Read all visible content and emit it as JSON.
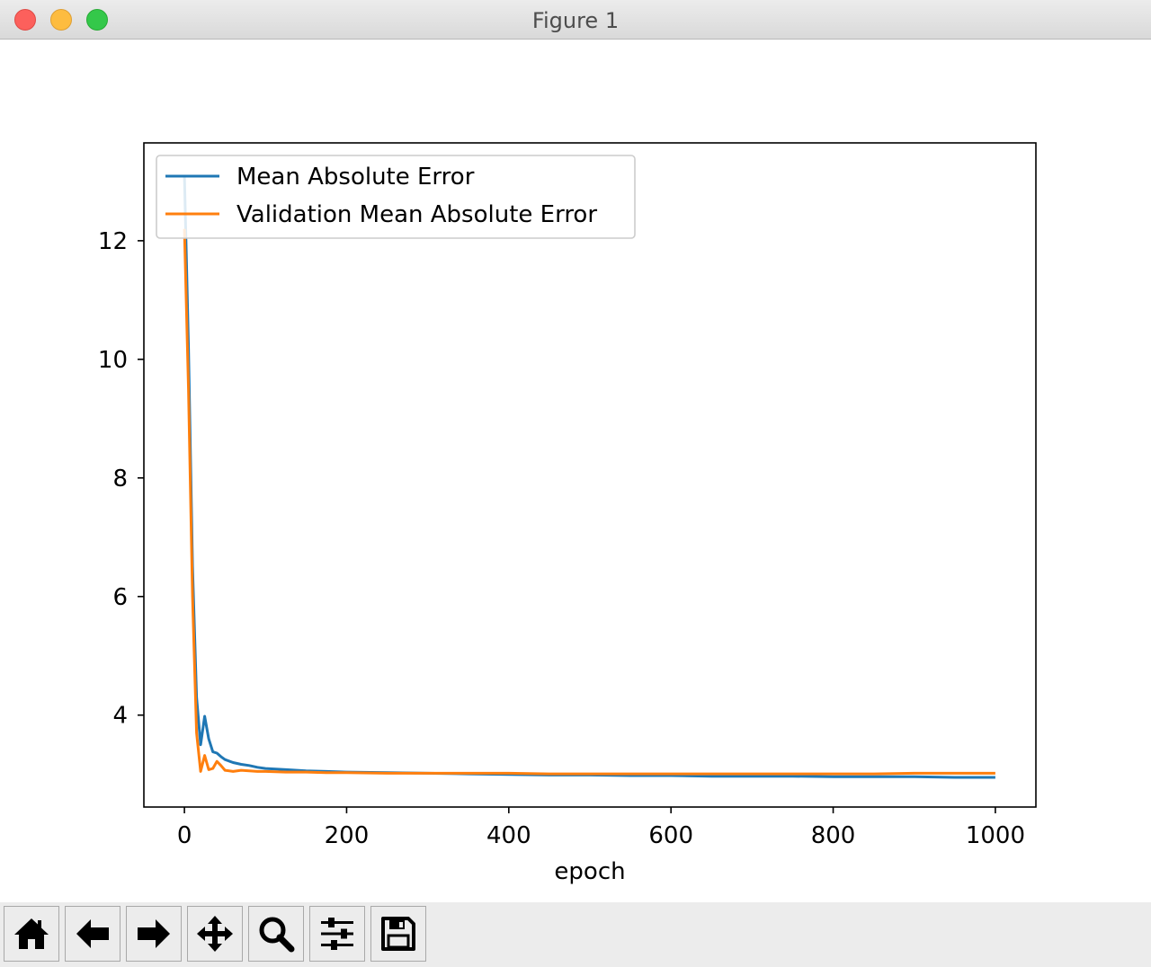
{
  "window": {
    "title": "Figure 1"
  },
  "chart_data": {
    "type": "line",
    "xlabel": "epoch",
    "ylabel": "",
    "xlim": [
      -50,
      1050
    ],
    "ylim": [
      2.45,
      13.65
    ],
    "xticks": [
      0,
      200,
      400,
      600,
      800,
      1000
    ],
    "xtick_labels": [
      "0",
      "200",
      "400",
      "600",
      "800",
      "1000"
    ],
    "yticks": [
      4,
      6,
      8,
      10,
      12
    ],
    "ytick_labels": [
      "4",
      "6",
      "8",
      "10",
      "12"
    ],
    "grid": false,
    "legend": {
      "placement": "top-left"
    },
    "series": [
      {
        "name": "Mean Absolute Error",
        "color": "#1f77b4",
        "x": [
          0,
          5,
          10,
          15,
          20,
          25,
          30,
          35,
          40,
          45,
          50,
          60,
          70,
          80,
          90,
          100,
          125,
          150,
          175,
          200,
          250,
          300,
          350,
          400,
          450,
          500,
          550,
          600,
          650,
          700,
          750,
          800,
          850,
          900,
          950,
          1000
        ],
        "y": [
          13.1,
          10.2,
          6.5,
          4.3,
          3.5,
          3.98,
          3.6,
          3.38,
          3.36,
          3.3,
          3.25,
          3.2,
          3.17,
          3.15,
          3.12,
          3.1,
          3.08,
          3.06,
          3.05,
          3.04,
          3.03,
          3.02,
          3.01,
          3.0,
          2.99,
          2.99,
          2.98,
          2.98,
          2.97,
          2.97,
          2.97,
          2.96,
          2.96,
          2.96,
          2.95,
          2.95
        ]
      },
      {
        "name": "Validation Mean Absolute Error",
        "color": "#ff7f0e",
        "x": [
          0,
          5,
          10,
          15,
          20,
          25,
          30,
          35,
          40,
          45,
          50,
          60,
          70,
          80,
          90,
          100,
          125,
          150,
          175,
          200,
          250,
          300,
          350,
          400,
          450,
          500,
          550,
          600,
          650,
          700,
          750,
          800,
          850,
          900,
          950,
          1000
        ],
        "y": [
          12.2,
          9.5,
          6.0,
          3.7,
          3.05,
          3.32,
          3.08,
          3.1,
          3.22,
          3.15,
          3.07,
          3.05,
          3.07,
          3.06,
          3.05,
          3.05,
          3.04,
          3.04,
          3.03,
          3.03,
          3.02,
          3.02,
          3.02,
          3.02,
          3.01,
          3.01,
          3.01,
          3.01,
          3.01,
          3.01,
          3.01,
          3.01,
          3.01,
          3.02,
          3.02,
          3.02
        ]
      }
    ]
  },
  "toolbar": {
    "buttons": [
      {
        "name": "home-button",
        "icon": "home-icon"
      },
      {
        "name": "back-button",
        "icon": "arrow-left-icon"
      },
      {
        "name": "forward-button",
        "icon": "arrow-right-icon"
      },
      {
        "name": "pan-button",
        "icon": "move-icon"
      },
      {
        "name": "zoom-button",
        "icon": "magnifier-icon"
      },
      {
        "name": "configure-subplots-button",
        "icon": "sliders-icon"
      },
      {
        "name": "save-button",
        "icon": "floppy-disk-icon"
      }
    ]
  }
}
